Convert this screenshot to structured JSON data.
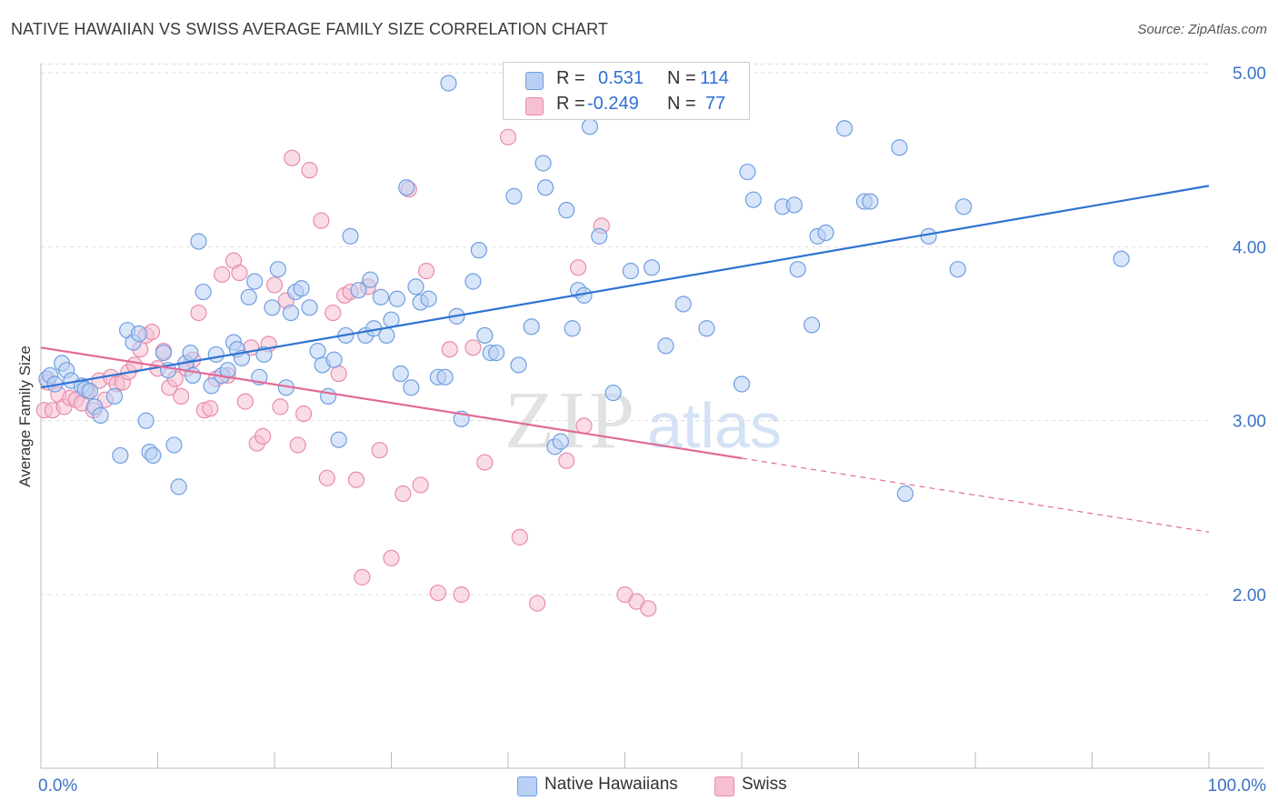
{
  "header": {
    "title": "NATIVE HAWAIIAN VS SWISS AVERAGE FAMILY SIZE CORRELATION CHART",
    "source": "Source: ZipAtlas.com"
  },
  "watermark": {
    "zip": "ZIP",
    "atlas": "atlas"
  },
  "legend": {
    "r_label": "R =",
    "n_label": "N =",
    "rows": [
      {
        "r": "0.531",
        "n": "114"
      },
      {
        "r": "-0.249",
        "n": "77"
      }
    ]
  },
  "bottom_legend": [
    {
      "label": "Native Hawaiians"
    },
    {
      "label": "Swiss"
    }
  ],
  "colors": {
    "blue_fill": "#b9d0f4",
    "blue_stroke": "#6f9fe0",
    "blue_line": "#2f73d2",
    "pink_fill": "#f6c0d2",
    "pink_stroke": "#e98bab",
    "pink_line": "#e06b97",
    "axis_tick_label": "#3a72c8",
    "grid": "#dddddd"
  },
  "chart_data": {
    "type": "scatter",
    "title": "NATIVE HAWAIIAN VS SWISS AVERAGE FAMILY SIZE CORRELATION CHART",
    "xlabel": "",
    "ylabel": "Average Family Size",
    "xlim": [
      0,
      100
    ],
    "ylim": [
      1.0,
      5.1
    ],
    "x_tick_labels": [
      {
        "value": 0,
        "label": "0.0%"
      },
      {
        "value": 100,
        "label": "100.0%"
      }
    ],
    "y_tick_labels": [
      {
        "value": 2.0,
        "label": "2.00"
      },
      {
        "value": 3.0,
        "label": "3.00"
      },
      {
        "value": 4.0,
        "label": "4.00"
      },
      {
        "value": 5.0,
        "label": "5.00"
      }
    ],
    "grid": true,
    "legend_position": "top-center",
    "series": [
      {
        "name": "Native Hawaiians",
        "r": 0.531,
        "n": 114,
        "trend": {
          "x": [
            0,
            100
          ],
          "y": [
            3.19,
            4.35
          ],
          "dashed_from": null
        },
        "points": [
          [
            0.5,
            3.24
          ],
          [
            0.8,
            3.26
          ],
          [
            1.2,
            3.21
          ],
          [
            1.8,
            3.33
          ],
          [
            2.2,
            3.29
          ],
          [
            2.6,
            3.23
          ],
          [
            3.5,
            3.2
          ],
          [
            3.8,
            3.18
          ],
          [
            4.2,
            3.17
          ],
          [
            4.6,
            3.08
          ],
          [
            5.1,
            3.03
          ],
          [
            6.3,
            3.14
          ],
          [
            6.8,
            2.8
          ],
          [
            7.4,
            3.52
          ],
          [
            7.9,
            3.45
          ],
          [
            8.4,
            3.5
          ],
          [
            9.0,
            3.0
          ],
          [
            9.3,
            2.82
          ],
          [
            9.6,
            2.8
          ],
          [
            10.5,
            3.39
          ],
          [
            10.9,
            3.29
          ],
          [
            11.4,
            2.86
          ],
          [
            11.8,
            2.62
          ],
          [
            12.4,
            3.33
          ],
          [
            12.8,
            3.39
          ],
          [
            13.0,
            3.26
          ],
          [
            13.5,
            4.03
          ],
          [
            13.9,
            3.74
          ],
          [
            14.6,
            3.2
          ],
          [
            15.0,
            3.38
          ],
          [
            15.5,
            3.26
          ],
          [
            16.0,
            3.29
          ],
          [
            16.5,
            3.45
          ],
          [
            16.8,
            3.41
          ],
          [
            17.2,
            3.36
          ],
          [
            17.8,
            3.71
          ],
          [
            18.3,
            3.8
          ],
          [
            18.7,
            3.25
          ],
          [
            19.1,
            3.38
          ],
          [
            19.8,
            3.65
          ],
          [
            20.3,
            3.87
          ],
          [
            21.0,
            3.19
          ],
          [
            21.4,
            3.62
          ],
          [
            21.8,
            3.74
          ],
          [
            22.3,
            3.76
          ],
          [
            23.0,
            3.65
          ],
          [
            23.7,
            3.4
          ],
          [
            24.1,
            3.32
          ],
          [
            24.6,
            3.14
          ],
          [
            25.1,
            3.35
          ],
          [
            25.5,
            2.89
          ],
          [
            26.1,
            3.49
          ],
          [
            26.5,
            4.06
          ],
          [
            27.2,
            3.75
          ],
          [
            27.8,
            3.49
          ],
          [
            28.2,
            3.81
          ],
          [
            28.5,
            3.53
          ],
          [
            29.1,
            3.71
          ],
          [
            29.6,
            3.49
          ],
          [
            30.0,
            3.58
          ],
          [
            30.5,
            3.7
          ],
          [
            30.8,
            3.27
          ],
          [
            31.3,
            4.34
          ],
          [
            31.7,
            3.19
          ],
          [
            32.1,
            3.77
          ],
          [
            32.5,
            3.68
          ],
          [
            33.2,
            3.7
          ],
          [
            34.0,
            3.25
          ],
          [
            34.6,
            3.25
          ],
          [
            34.9,
            4.94
          ],
          [
            35.6,
            3.6
          ],
          [
            36.0,
            3.01
          ],
          [
            37.0,
            3.8
          ],
          [
            37.5,
            3.98
          ],
          [
            38.0,
            3.49
          ],
          [
            38.5,
            3.39
          ],
          [
            39.0,
            3.39
          ],
          [
            40.5,
            4.29
          ],
          [
            40.9,
            3.32
          ],
          [
            42.0,
            3.54
          ],
          [
            43.0,
            4.48
          ],
          [
            43.2,
            4.34
          ],
          [
            44.0,
            2.85
          ],
          [
            44.5,
            2.88
          ],
          [
            45.0,
            4.21
          ],
          [
            45.5,
            3.53
          ],
          [
            46.0,
            3.75
          ],
          [
            46.5,
            3.72
          ],
          [
            47.0,
            4.69
          ],
          [
            47.8,
            4.06
          ],
          [
            49.0,
            3.16
          ],
          [
            50.5,
            3.86
          ],
          [
            52.3,
            3.88
          ],
          [
            53.5,
            3.43
          ],
          [
            55.0,
            3.67
          ],
          [
            57.0,
            3.53
          ],
          [
            60.0,
            3.21
          ],
          [
            60.5,
            4.43
          ],
          [
            61.0,
            4.27
          ],
          [
            63.5,
            4.23
          ],
          [
            64.5,
            4.24
          ],
          [
            64.8,
            3.87
          ],
          [
            66.0,
            3.55
          ],
          [
            66.5,
            4.06
          ],
          [
            67.2,
            4.08
          ],
          [
            68.8,
            4.68
          ],
          [
            70.5,
            4.26
          ],
          [
            71.0,
            4.26
          ],
          [
            73.5,
            4.57
          ],
          [
            74.0,
            2.58
          ],
          [
            76.0,
            4.06
          ],
          [
            78.5,
            3.87
          ],
          [
            79.0,
            4.23
          ],
          [
            92.5,
            3.93
          ]
        ]
      },
      {
        "name": "Swiss",
        "r": -0.249,
        "n": 77,
        "trend": {
          "x": [
            0,
            100
          ],
          "y": [
            3.42,
            2.36
          ],
          "dashed_from": 60
        },
        "points": [
          [
            0.3,
            3.06
          ],
          [
            0.6,
            3.22
          ],
          [
            1.0,
            3.06
          ],
          [
            1.5,
            3.15
          ],
          [
            2.0,
            3.08
          ],
          [
            2.5,
            3.13
          ],
          [
            3.0,
            3.12
          ],
          [
            3.5,
            3.1
          ],
          [
            4.0,
            3.17
          ],
          [
            4.5,
            3.06
          ],
          [
            5.0,
            3.23
          ],
          [
            5.5,
            3.12
          ],
          [
            6.0,
            3.25
          ],
          [
            6.5,
            3.21
          ],
          [
            7.0,
            3.22
          ],
          [
            7.5,
            3.28
          ],
          [
            8.0,
            3.32
          ],
          [
            8.5,
            3.41
          ],
          [
            9.0,
            3.49
          ],
          [
            9.5,
            3.51
          ],
          [
            10.0,
            3.3
          ],
          [
            10.5,
            3.4
          ],
          [
            11.0,
            3.19
          ],
          [
            11.5,
            3.24
          ],
          [
            12.0,
            3.14
          ],
          [
            12.5,
            3.3
          ],
          [
            13.0,
            3.35
          ],
          [
            13.5,
            3.62
          ],
          [
            14.0,
            3.06
          ],
          [
            14.5,
            3.07
          ],
          [
            15.0,
            3.24
          ],
          [
            15.5,
            3.84
          ],
          [
            16.0,
            3.26
          ],
          [
            16.5,
            3.92
          ],
          [
            17.0,
            3.85
          ],
          [
            17.5,
            3.11
          ],
          [
            18.0,
            3.42
          ],
          [
            18.5,
            2.87
          ],
          [
            19.0,
            2.91
          ],
          [
            19.5,
            3.44
          ],
          [
            20.0,
            3.78
          ],
          [
            20.5,
            3.08
          ],
          [
            21.0,
            3.69
          ],
          [
            21.5,
            4.51
          ],
          [
            22.0,
            2.86
          ],
          [
            22.5,
            3.04
          ],
          [
            23.0,
            4.44
          ],
          [
            24.0,
            4.15
          ],
          [
            24.5,
            2.67
          ],
          [
            25.0,
            3.62
          ],
          [
            25.5,
            3.27
          ],
          [
            26.0,
            3.72
          ],
          [
            26.5,
            3.74
          ],
          [
            27.0,
            2.66
          ],
          [
            27.5,
            2.1
          ],
          [
            28.0,
            3.77
          ],
          [
            29.0,
            2.83
          ],
          [
            30.0,
            2.21
          ],
          [
            31.0,
            2.58
          ],
          [
            31.5,
            4.33
          ],
          [
            32.5,
            2.63
          ],
          [
            33.0,
            3.86
          ],
          [
            34.0,
            2.01
          ],
          [
            35.0,
            3.41
          ],
          [
            36.0,
            2.0
          ],
          [
            37.0,
            3.42
          ],
          [
            38.0,
            2.76
          ],
          [
            40.0,
            4.63
          ],
          [
            41.0,
            2.33
          ],
          [
            42.5,
            1.95
          ],
          [
            45.0,
            2.77
          ],
          [
            46.0,
            3.88
          ],
          [
            46.5,
            2.97
          ],
          [
            48.0,
            4.12
          ],
          [
            50.0,
            2.0
          ],
          [
            51.0,
            1.96
          ],
          [
            52.0,
            1.92
          ]
        ]
      }
    ]
  }
}
